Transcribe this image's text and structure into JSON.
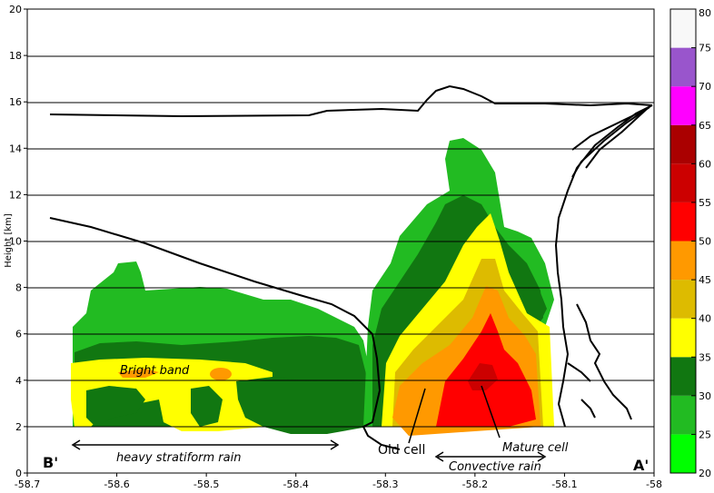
{
  "chart_data": {
    "type": "heatmap",
    "ylabel": "Height [km]",
    "xlim": [
      -58.7,
      -58.0
    ],
    "ylim": [
      0,
      20
    ],
    "x_ticks": [
      "-58.7",
      "-58.6",
      "-58.5",
      "-58.4",
      "-58.3",
      "-58.2",
      "-58.1",
      "-58"
    ],
    "y_ticks": [
      "0",
      "2",
      "4",
      "6",
      "8",
      "10",
      "12",
      "14",
      "16",
      "18",
      "20"
    ],
    "grid": "horizontal",
    "colorbar": {
      "ticks": [
        "20",
        "25",
        "30",
        "35",
        "40",
        "45",
        "50",
        "55",
        "60",
        "65",
        "70",
        "75",
        "80"
      ],
      "colors": [
        "#00ff00",
        "#22bb22",
        "#117711",
        "#ffff00",
        "#ddbb00",
        "#ff9900",
        "#ff0000",
        "#cc0000",
        "#aa0000",
        "#ff00ff",
        "#9955cc",
        "#f8f8f8"
      ]
    },
    "annotations": {
      "bright_band": "Bright band",
      "stratiform": "heavy stratiform rain",
      "old_cell": "Old cell",
      "mature_cell": "Mature cell",
      "convective": "Convective rain",
      "b_prime": "B'",
      "a_prime": "A'"
    }
  }
}
